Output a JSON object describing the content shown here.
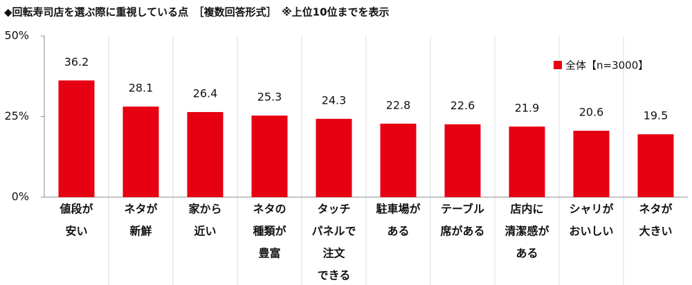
{
  "chart_data": {
    "type": "bar",
    "title": "◆回転寿司店を選ぶ際に重視している点　［複数回答形式］　※上位10位までを表示",
    "categories": [
      [
        "値段が",
        "安い"
      ],
      [
        "ネタが",
        "新鮮"
      ],
      [
        "家から",
        "近い"
      ],
      [
        "ネタの",
        "種類が",
        "豊富"
      ],
      [
        "タッチ",
        "パネルで",
        "注文",
        "できる"
      ],
      [
        "駐車場が",
        "ある"
      ],
      [
        "テーブル",
        "席がある"
      ],
      [
        "店内に",
        "清潔感が",
        "ある"
      ],
      [
        "シャリが",
        "おいしい"
      ],
      [
        "ネタが",
        "大きい"
      ]
    ],
    "series": [
      {
        "name": "全体【n=3000】",
        "color": "#e60012",
        "values": [
          36.2,
          28.1,
          26.4,
          25.3,
          24.3,
          22.8,
          22.6,
          21.9,
          20.6,
          19.5
        ]
      }
    ],
    "ylim": [
      0,
      50
    ],
    "yticks": [
      {
        "value": 0,
        "label": "0%"
      },
      {
        "value": 25,
        "label": "25%"
      },
      {
        "value": 50,
        "label": "50%"
      }
    ],
    "legend": "top-right"
  }
}
